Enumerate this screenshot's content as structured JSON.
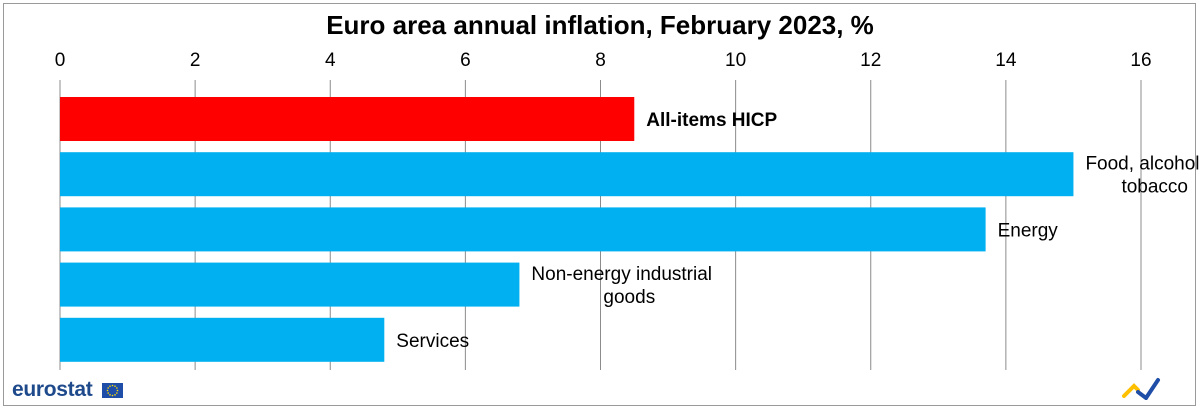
{
  "chart_data": {
    "type": "bar",
    "orientation": "horizontal",
    "title": "Euro area annual inflation, February 2023, %",
    "xlim": [
      0,
      16
    ],
    "x_ticks": [
      "0",
      "2",
      "4",
      "6",
      "8",
      "10",
      "12",
      "14",
      "16"
    ],
    "grid": "vertical",
    "categories": [
      {
        "label_lines": [
          "All-items HICP"
        ],
        "value": 8.5,
        "color": "#ff0000",
        "bold": true
      },
      {
        "label_lines": [
          "Food, alcohol &",
          "tobacco"
        ],
        "value": 15.0,
        "color": "#00b0f0",
        "bold": false
      },
      {
        "label_lines": [
          "Energy"
        ],
        "value": 13.7,
        "color": "#00b0f0",
        "bold": false
      },
      {
        "label_lines": [
          "Non-energy industrial",
          "goods"
        ],
        "value": 6.8,
        "color": "#00b0f0",
        "bold": false
      },
      {
        "label_lines": [
          "Services"
        ],
        "value": 4.8,
        "color": "#00b0f0",
        "bold": false
      }
    ]
  },
  "logo": {
    "text": "eurostat",
    "text_color": "#1e4a8c",
    "flag_color": "#1f4ea8",
    "star_color": "#ffdd00"
  },
  "brand_mark": {
    "colors": [
      "#ffc000",
      "#1f4ea8"
    ]
  }
}
